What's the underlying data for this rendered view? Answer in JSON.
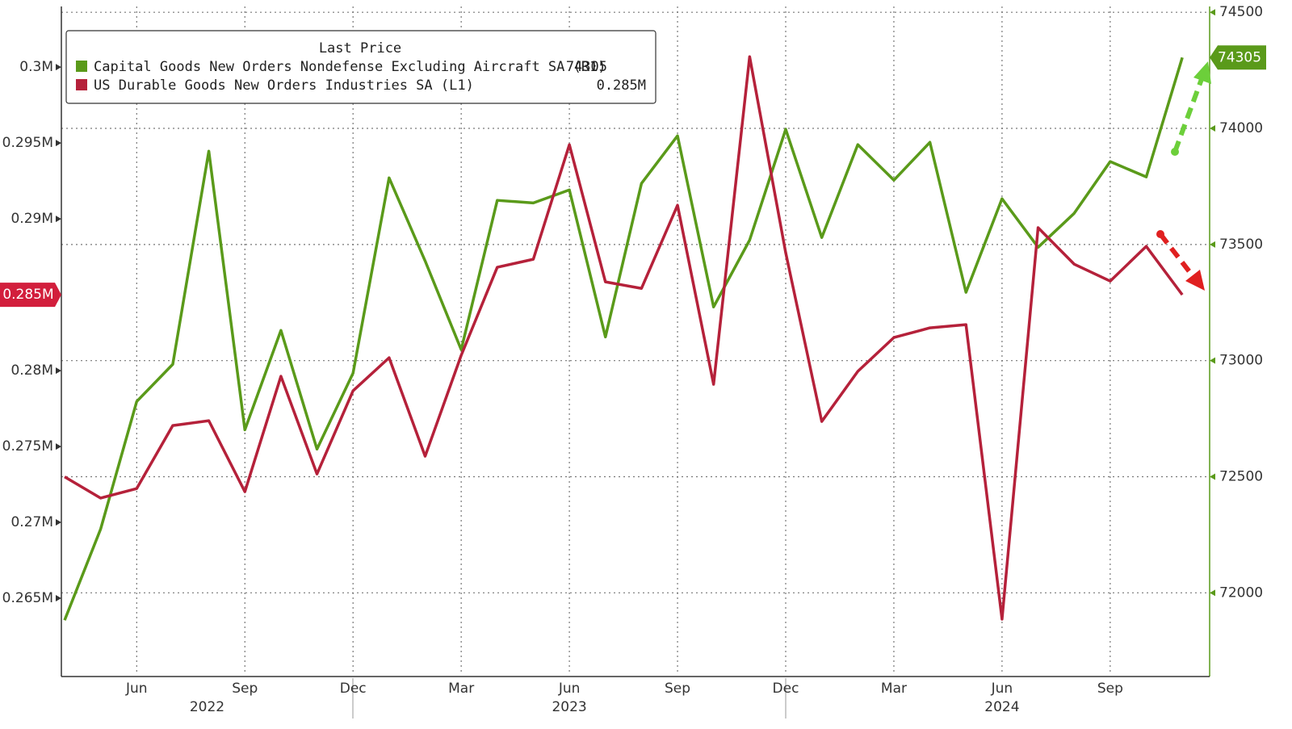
{
  "chart_data": {
    "type": "line",
    "legend_title": "Last Price",
    "categories": [
      null,
      null,
      "Jun",
      null,
      null,
      "Sep",
      null,
      null,
      "Dec",
      null,
      null,
      "Mar",
      null,
      null,
      "Jun",
      null,
      null,
      "Sep",
      null,
      null,
      "Dec",
      null,
      null,
      "Mar",
      null,
      null,
      "Jun",
      null,
      null,
      "Sep",
      null,
      null
    ],
    "years": [
      "2022",
      "2023",
      "2024"
    ],
    "ylim": [
      260000,
      304000
    ],
    "yticks": [
      {
        "value": 265000,
        "label": "0.265M"
      },
      {
        "value": 270000,
        "label": "0.27M"
      },
      {
        "value": 275000,
        "label": "0.275M"
      },
      {
        "value": 280000,
        "label": "0.28M"
      },
      {
        "value": 285000,
        "label": "0.285M"
      },
      {
        "value": 290000,
        "label": "0.29M"
      },
      {
        "value": 295000,
        "label": "0.295M"
      },
      {
        "value": 300000,
        "label": "0.3M"
      }
    ],
    "y2lim": [
      71650,
      74525
    ],
    "y2ticks": [
      72000,
      72500,
      73000,
      73500,
      74000,
      74500
    ],
    "grid": true,
    "legend": "upper left",
    "series": [
      {
        "name": "Capital Goods New Orders Nondefense Excluding Aircraft SA  (R1)",
        "color": "#5a9a1a",
        "axis": "y2",
        "values": [
          71882,
          72275,
          72824,
          72984,
          73902,
          72702,
          73130,
          72619,
          72946,
          73787,
          73429,
          73047,
          73690,
          73679,
          73735,
          73102,
          73763,
          73968,
          73231,
          73519,
          73996,
          73530,
          73930,
          73777,
          73940,
          73294,
          73697,
          73488,
          73634,
          73857,
          73791,
          74305
        ]
      },
      {
        "name": "US Durable Goods New Orders Industries SA  (L1)",
        "color": "#b5213a",
        "axis": "y",
        "values": [
          273000,
          271600,
          272230,
          276380,
          276700,
          272020,
          279630,
          273190,
          278670,
          280850,
          274360,
          281010,
          286810,
          287340,
          294890,
          285850,
          285420,
          290900,
          279100,
          300690,
          287770,
          276650,
          279950,
          282180,
          282820,
          283030,
          263620,
          289420,
          287020,
          285900,
          288190,
          285000
        ],
        "value_labels": [
          null,
          null,
          null,
          null,
          null,
          null,
          null,
          null,
          null,
          null,
          null,
          null,
          null,
          null,
          null,
          null,
          null,
          null,
          null,
          null,
          null,
          null,
          null,
          null,
          null,
          null,
          null,
          null,
          null,
          null,
          null,
          "0.285M"
        ]
      }
    ]
  }
}
